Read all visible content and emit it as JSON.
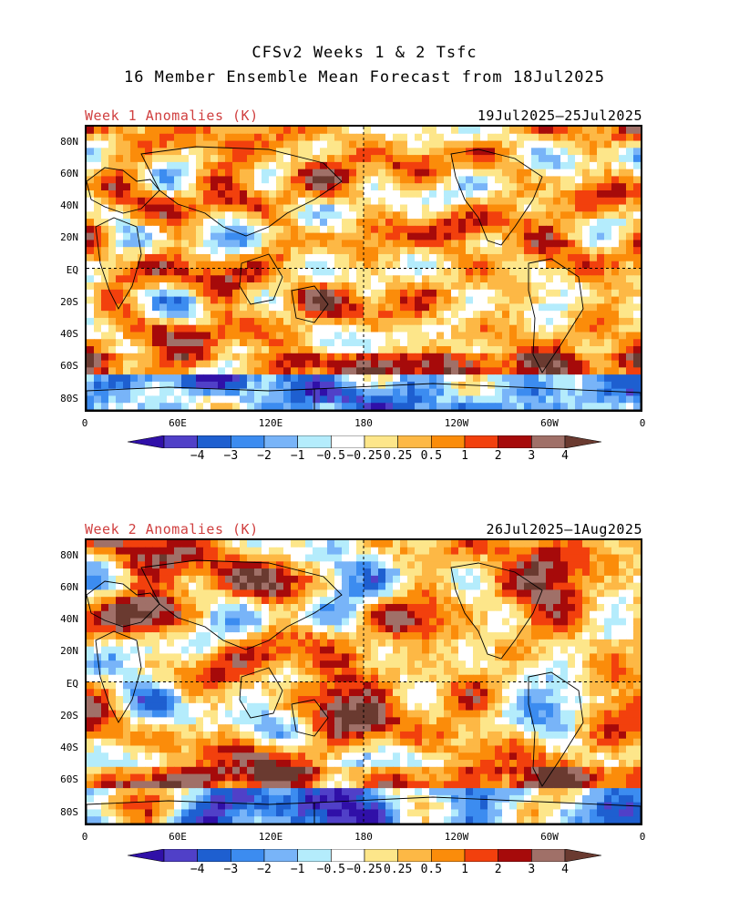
{
  "title": {
    "line1": "CFSv2 Weeks 1 & 2 Tsfc",
    "line2": "16 Member Ensemble Mean Forecast from 18Jul2025"
  },
  "panels": [
    {
      "anomaly_label": "Week 1 Anomalies (K)",
      "date_range": "19Jul2025—25Jul2025"
    },
    {
      "anomaly_label": "Week 2 Anomalies (K)",
      "date_range": "26Jul2025—1Aug2025"
    }
  ],
  "lat_ticks": [
    "80N",
    "60N",
    "40N",
    "20N",
    "EQ",
    "20S",
    "40S",
    "60S",
    "80S"
  ],
  "lon_ticks": [
    "0",
    "60E",
    "120E",
    "180",
    "120W",
    "60W",
    "0"
  ],
  "colorbar": {
    "labels": [
      "−4",
      "−3",
      "−2",
      "−1",
      "−0.5",
      "−0.25",
      "0.25",
      "0.5",
      "1",
      "2",
      "3",
      "4"
    ],
    "colors": [
      "#3010a8",
      "#5040c8",
      "#1e5fd0",
      "#3c8cf0",
      "#78b4f8",
      "#b4ecfc",
      "#ffffff",
      "#fde68a",
      "#fdb845",
      "#fb8c0a",
      "#f2400d",
      "#a60a0a",
      "#a07068",
      "#6a3a30"
    ]
  },
  "colors": {
    "title_text": "#000000",
    "anomaly_label": "#d04040"
  }
}
